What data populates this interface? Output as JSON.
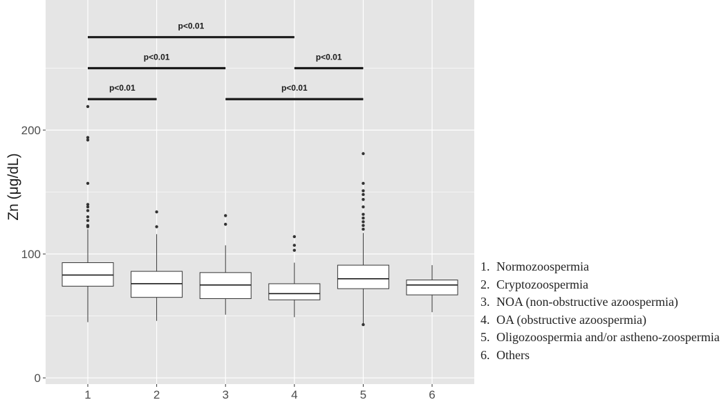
{
  "chart_data": {
    "type": "box",
    "ylabel": "Zn (μg/dL)",
    "ylim": [
      -5,
      305
    ],
    "yticks": [
      0,
      100,
      200
    ],
    "categories": [
      "1",
      "2",
      "3",
      "4",
      "5",
      "6"
    ],
    "boxes": [
      {
        "x": "1",
        "min": 45,
        "q1": 74,
        "median": 83,
        "q3": 93,
        "max": 120,
        "outliers": [
          122,
          123,
          127,
          130,
          135,
          138,
          140,
          157,
          192,
          194,
          219
        ]
      },
      {
        "x": "2",
        "min": 46,
        "q1": 65,
        "median": 76,
        "q3": 86,
        "max": 116,
        "outliers": [
          122,
          134
        ]
      },
      {
        "x": "3",
        "min": 51,
        "q1": 64,
        "median": 75,
        "q3": 85,
        "max": 107,
        "outliers": [
          124,
          131
        ]
      },
      {
        "x": "4",
        "min": 49,
        "q1": 63,
        "median": 68,
        "q3": 76,
        "max": 93,
        "outliers": [
          103,
          107,
          114
        ]
      },
      {
        "x": "5",
        "min": 44,
        "q1": 72,
        "median": 80,
        "q3": 91,
        "max": 117,
        "outliers": [
          43,
          120,
          123,
          126,
          129,
          132,
          138,
          144,
          148,
          151,
          157,
          181
        ]
      },
      {
        "x": "6",
        "min": 53,
        "q1": 67,
        "median": 75,
        "q3": 79,
        "max": 91,
        "outliers": []
      }
    ],
    "significance": [
      {
        "from": "1",
        "to": "4",
        "y": 275,
        "label": "p<0.01"
      },
      {
        "from": "1",
        "to": "3",
        "y": 250,
        "label": "p<0.01"
      },
      {
        "from": "4",
        "to": "5",
        "y": 250,
        "label": "p<0.01"
      },
      {
        "from": "1",
        "to": "2",
        "y": 225,
        "label": "p<0.01"
      },
      {
        "from": "3",
        "to": "5",
        "y": 225,
        "label": "p<0.01"
      }
    ],
    "legend": [
      {
        "num": "1.",
        "text": "Normozoospermia"
      },
      {
        "num": "2.",
        "text": "Cryptozoospermia"
      },
      {
        "num": "3.",
        "text": "NOA (non-obstructive azoospermia)"
      },
      {
        "num": "4.",
        "text": "OA (obstructive azoospermia)"
      },
      {
        "num": "5.",
        "text": "Oligozoospermia and/or astheno-zoospermia"
      },
      {
        "num": "6.",
        "text": "Others"
      }
    ],
    "grid": true,
    "legend_placement": "right",
    "colors": {
      "panel": "#e5e5e5",
      "grid": "#ffffff",
      "box_fill": "#ffffff",
      "stroke": "#333333",
      "bracket": "#1a1a1a"
    }
  }
}
